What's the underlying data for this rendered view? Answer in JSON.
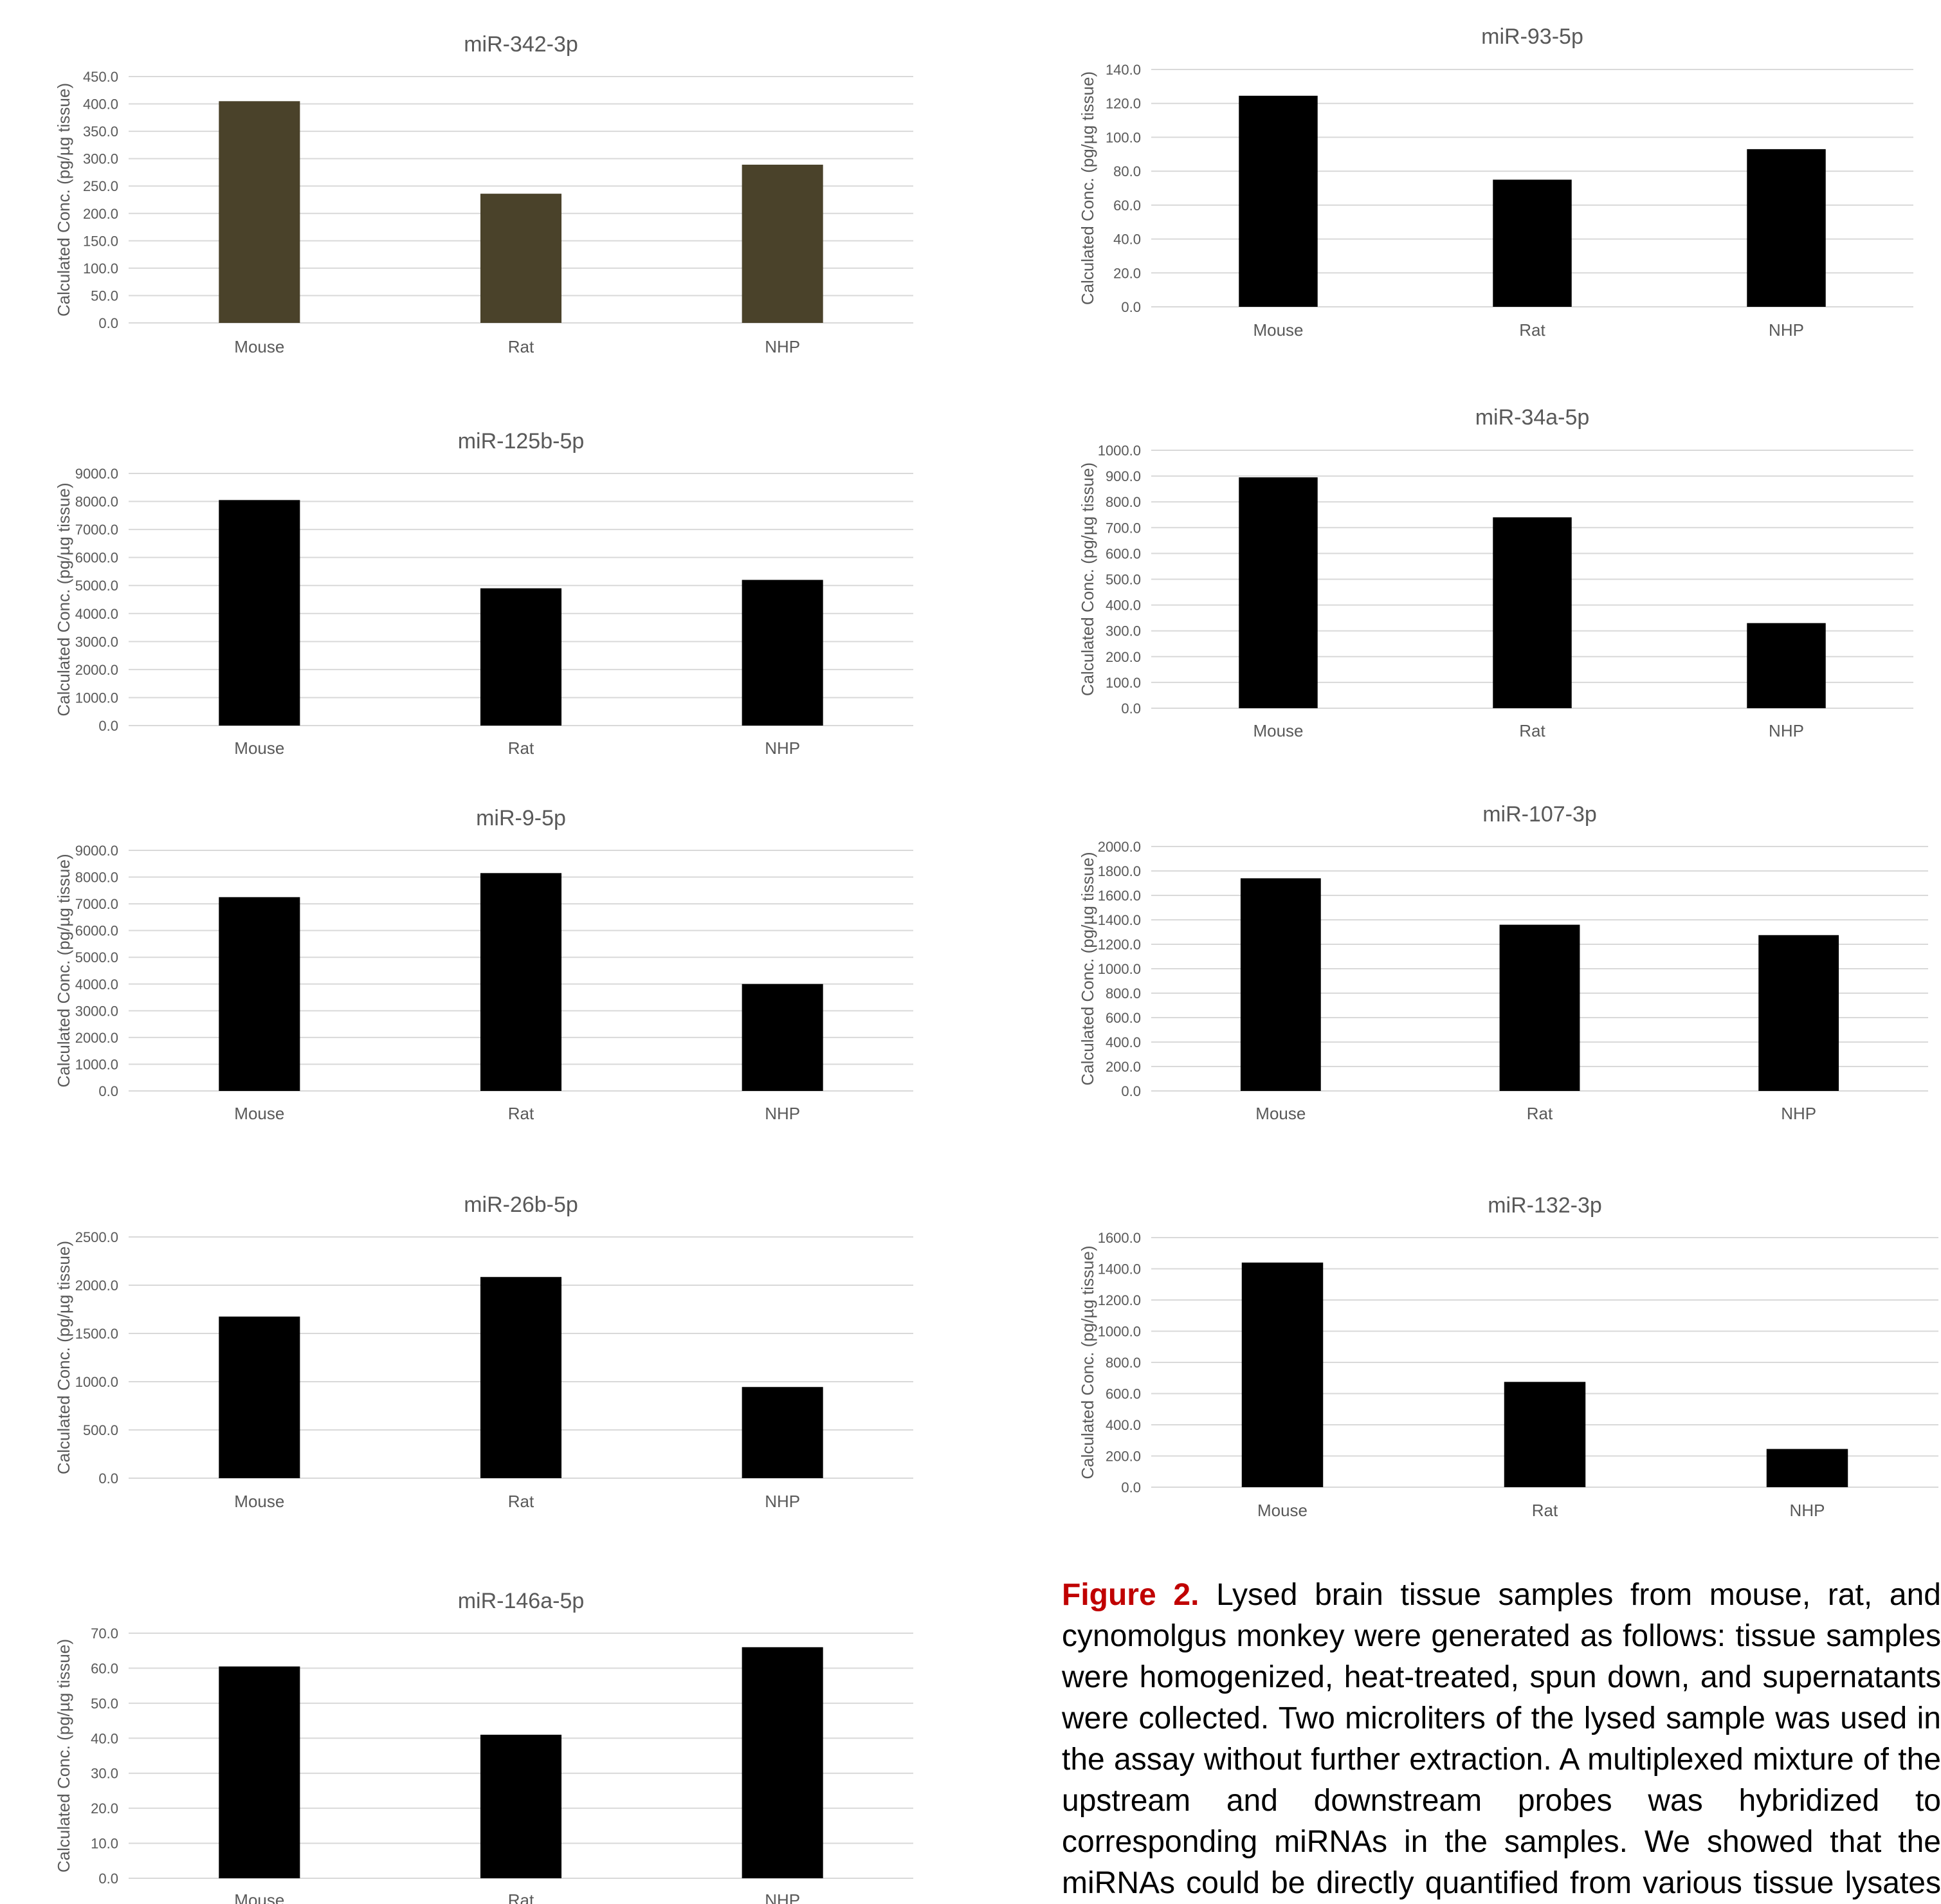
{
  "colors": {
    "bar_default": "#000000",
    "bar_first_chart": "#4a422a",
    "grid": "#d9d9d9",
    "axis_text": "#595959",
    "caption_lead": "#c00000"
  },
  "caption": {
    "lead": "Figure 2.",
    "text": "Lysed brain tissue samples from mouse, rat, and cynomolgus monkey were generated as follows: tissue samples were homogenized, heat-treated, spun down, and supernatants were collected. Two microliters of the lysed sample was used in the assay without further extraction. A multiplexed mixture of the upstream and downstream probes was hybridized to corresponding miRNAs in the samples. We showed that the miRNAs could be directly quantified from various tissue lysates without any complex extraction steps or amplification."
  },
  "chart_data": [
    {
      "type": "bar",
      "title": "miR-342-3p",
      "ylabel": "Calculated Conc. (pg/µg tissue)",
      "categories": [
        "Mouse",
        "Rat",
        "NHP"
      ],
      "values": [
        405,
        236,
        289
      ],
      "ylim": [
        0,
        450
      ],
      "yticks": [
        "0.0",
        "50.0",
        "100.0",
        "150.0",
        "200.0",
        "250.0",
        "300.0",
        "350.0",
        "400.0",
        "450.0"
      ],
      "grid": true,
      "color": "#4a422a"
    },
    {
      "type": "bar",
      "title": "miR-125b-5p",
      "ylabel": "Calculated Conc. (pg/µg tissue)",
      "categories": [
        "Mouse",
        "Rat",
        "NHP"
      ],
      "values": [
        8050,
        4900,
        5200
      ],
      "ylim": [
        0,
        9000
      ],
      "yticks": [
        "0.0",
        "1000.0",
        "2000.0",
        "3000.0",
        "4000.0",
        "5000.0",
        "6000.0",
        "7000.0",
        "8000.0",
        "9000.0"
      ],
      "grid": true,
      "color": "#000000"
    },
    {
      "type": "bar",
      "title": "miR-9-5p",
      "ylabel": "Calculated Conc. (pg/µg tissue)",
      "categories": [
        "Mouse",
        "Rat",
        "NHP"
      ],
      "values": [
        7250,
        8150,
        4000
      ],
      "ylim": [
        0,
        9000
      ],
      "yticks": [
        "0.0",
        "1000.0",
        "2000.0",
        "3000.0",
        "4000.0",
        "5000.0",
        "6000.0",
        "7000.0",
        "8000.0",
        "9000.0"
      ],
      "grid": true,
      "color": "#000000"
    },
    {
      "type": "bar",
      "title": "miR-26b-5p",
      "ylabel": "Calculated Conc. (pg/µg tissue)",
      "categories": [
        "Mouse",
        "Rat",
        "NHP"
      ],
      "values": [
        1675,
        2085,
        945
      ],
      "ylim": [
        0,
        2500
      ],
      "yticks": [
        "0.0",
        "500.0",
        "1000.0",
        "1500.0",
        "2000.0",
        "2500.0"
      ],
      "grid": true,
      "color": "#000000"
    },
    {
      "type": "bar",
      "title": "miR-146a-5p",
      "ylabel": "Calculated Conc. (pg/µg tissue)",
      "categories": [
        "Mouse",
        "Rat",
        "NHP"
      ],
      "values": [
        60.5,
        41,
        66
      ],
      "ylim": [
        0,
        70
      ],
      "yticks": [
        "0.0",
        "10.0",
        "20.0",
        "30.0",
        "40.0",
        "50.0",
        "60.0",
        "70.0"
      ],
      "grid": true,
      "color": "#000000"
    },
    {
      "type": "bar",
      "title": "miR-93-5p",
      "ylabel": "Calculated Conc. (pg/µg tissue)",
      "categories": [
        "Mouse",
        "Rat",
        "NHP"
      ],
      "values": [
        124.5,
        75,
        93
      ],
      "ylim": [
        0,
        140
      ],
      "yticks": [
        "0.0",
        "20.0",
        "40.0",
        "60.0",
        "80.0",
        "100.0",
        "120.0",
        "140.0"
      ],
      "grid": true,
      "color": "#000000"
    },
    {
      "type": "bar",
      "title": "miR-34a-5p",
      "ylabel": "Calculated Conc. (pg/µg tissue)",
      "categories": [
        "Mouse",
        "Rat",
        "NHP"
      ],
      "values": [
        895,
        740,
        330
      ],
      "ylim": [
        0,
        1000
      ],
      "yticks": [
        "0.0",
        "100.0",
        "200.0",
        "300.0",
        "400.0",
        "500.0",
        "600.0",
        "700.0",
        "800.0",
        "900.0",
        "1000.0"
      ],
      "grid": true,
      "color": "#000000"
    },
    {
      "type": "bar",
      "title": "miR-107-3p",
      "ylabel": "Calculated Conc. (pg/µg tissue)",
      "categories": [
        "Mouse",
        "Rat",
        "NHP"
      ],
      "values": [
        1740,
        1360,
        1275
      ],
      "ylim": [
        0,
        2000
      ],
      "yticks": [
        "0.0",
        "200.0",
        "400.0",
        "600.0",
        "800.0",
        "1000.0",
        "1200.0",
        "1400.0",
        "1600.0",
        "1800.0",
        "2000.0"
      ],
      "grid": true,
      "color": "#000000"
    },
    {
      "type": "bar",
      "title": "miR-132-3p",
      "ylabel": "Calculated Conc. (pg/µg tissue)",
      "categories": [
        "Mouse",
        "Rat",
        "NHP"
      ],
      "values": [
        1440,
        675,
        245
      ],
      "ylim": [
        0,
        1600
      ],
      "yticks": [
        "0.0",
        "200.0",
        "400.0",
        "600.0",
        "800.0",
        "1000.0",
        "1200.0",
        "1400.0",
        "1600.0"
      ],
      "grid": true,
      "color": "#000000"
    }
  ]
}
